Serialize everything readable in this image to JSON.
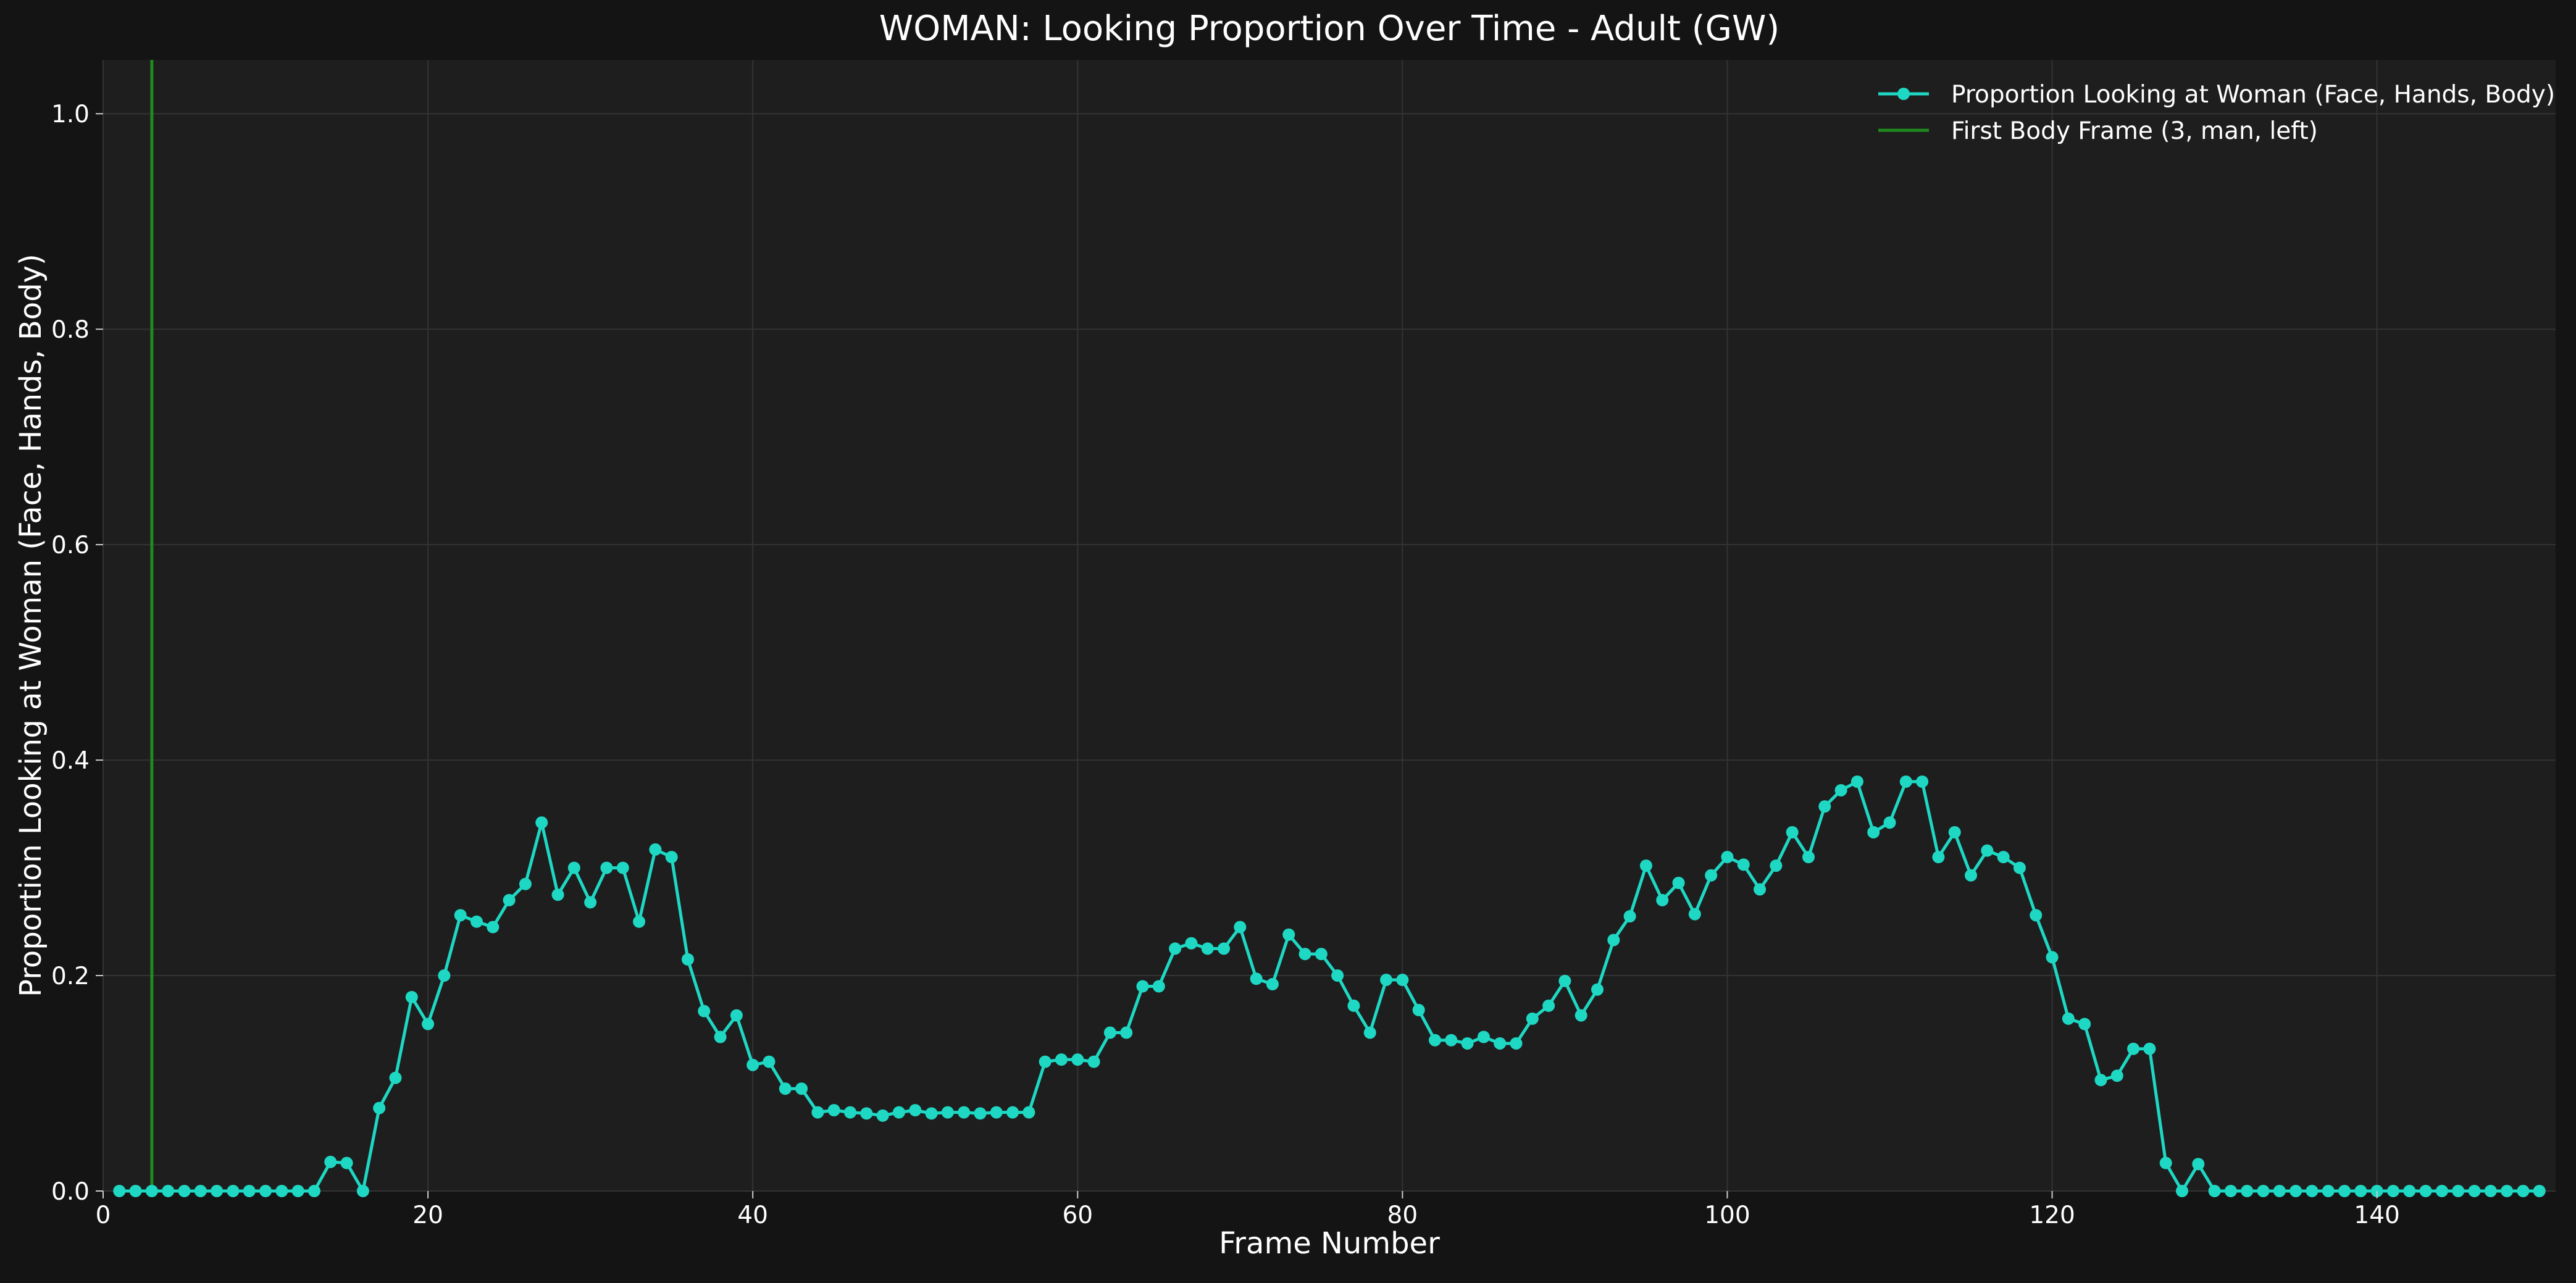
{
  "chart_data": {
    "type": "line",
    "title": "WOMAN: Looking Proportion Over Time - Adult (GW)",
    "xlabel": "Frame Number",
    "ylabel": "Proportion Looking at Woman (Face, Hands, Body)",
    "xlim": [
      0,
      151
    ],
    "ylim": [
      0,
      1.05
    ],
    "xticks": [
      0,
      20,
      40,
      60,
      80,
      100,
      120,
      140
    ],
    "yticks": [
      0.0,
      0.2,
      0.4,
      0.6,
      0.8,
      1.0
    ],
    "xtick_labels": [
      "0",
      "20",
      "40",
      "60",
      "80",
      "100",
      "120",
      "140"
    ],
    "ytick_labels": [
      "0.0",
      "0.2",
      "0.4",
      "0.6",
      "0.8",
      "1.0"
    ],
    "grid": true,
    "legend_position": "top-right",
    "series": [
      {
        "name": "Proportion Looking at Woman (Face, Hands, Body)",
        "color": "#1ed8c4",
        "marker": "circle",
        "x": [
          1,
          2,
          3,
          4,
          5,
          6,
          7,
          8,
          9,
          10,
          11,
          12,
          13,
          14,
          15,
          16,
          17,
          18,
          19,
          20,
          21,
          22,
          23,
          24,
          25,
          26,
          27,
          28,
          29,
          30,
          31,
          32,
          33,
          34,
          35,
          36,
          37,
          38,
          39,
          40,
          41,
          42,
          43,
          44,
          45,
          46,
          47,
          48,
          49,
          50,
          51,
          52,
          53,
          54,
          55,
          56,
          57,
          58,
          59,
          60,
          61,
          62,
          63,
          64,
          65,
          66,
          67,
          68,
          69,
          70,
          71,
          72,
          73,
          74,
          75,
          76,
          77,
          78,
          79,
          80,
          81,
          82,
          83,
          84,
          85,
          86,
          87,
          88,
          89,
          90,
          91,
          92,
          93,
          94,
          95,
          96,
          97,
          98,
          99,
          100,
          101,
          102,
          103,
          104,
          105,
          106,
          107,
          108,
          109,
          110,
          111,
          112,
          113,
          114,
          115,
          116,
          117,
          118,
          119,
          120,
          121,
          122,
          123,
          124,
          125,
          126,
          127,
          128,
          129,
          130,
          131,
          132,
          133,
          134,
          135,
          136,
          137,
          138,
          139,
          140,
          141,
          142,
          143,
          144,
          145,
          146,
          147,
          148,
          149,
          150
        ],
        "y": [
          0,
          0,
          0,
          0,
          0,
          0,
          0,
          0,
          0,
          0,
          0,
          0,
          0,
          0.027,
          0.026,
          0,
          0.077,
          0.105,
          0.18,
          0.155,
          0.2,
          0.256,
          0.25,
          0.245,
          0.27,
          0.285,
          0.342,
          0.275,
          0.3,
          0.268,
          0.3,
          0.3,
          0.25,
          0.317,
          0.31,
          0.215,
          0.167,
          0.143,
          0.163,
          0.117,
          0.12,
          0.095,
          0.095,
          0.073,
          0.075,
          0.073,
          0.072,
          0.07,
          0.073,
          0.075,
          0.072,
          0.073,
          0.073,
          0.072,
          0.073,
          0.073,
          0.073,
          0.12,
          0.122,
          0.122,
          0.12,
          0.147,
          0.147,
          0.19,
          0.19,
          0.225,
          0.23,
          0.225,
          0.225,
          0.245,
          0.197,
          0.192,
          0.238,
          0.22,
          0.22,
          0.2,
          0.172,
          0.147,
          0.196,
          0.196,
          0.168,
          0.14,
          0.14,
          0.137,
          0.143,
          0.137,
          0.137,
          0.16,
          0.172,
          0.195,
          0.163,
          0.187,
          0.233,
          0.255,
          0.302,
          0.27,
          0.286,
          0.257,
          0.293,
          0.31,
          0.303,
          0.28,
          0.302,
          0.333,
          0.31,
          0.357,
          0.372,
          0.38,
          0.333,
          0.342,
          0.38,
          0.38,
          0.31,
          0.333,
          0.293,
          0.316,
          0.31,
          0.3,
          0.256,
          0.217,
          0.16,
          0.155,
          0.103,
          0.107,
          0.132,
          0.132,
          0.026,
          0,
          0.025,
          0,
          0,
          0,
          0,
          0,
          0,
          0,
          0,
          0,
          0,
          0,
          0,
          0,
          0,
          0,
          0,
          0,
          0,
          0,
          0,
          0
        ]
      },
      {
        "name": "First Body Frame (3, man, left)",
        "color": "#1f8a1f",
        "type": "vline",
        "x": 3
      }
    ]
  }
}
